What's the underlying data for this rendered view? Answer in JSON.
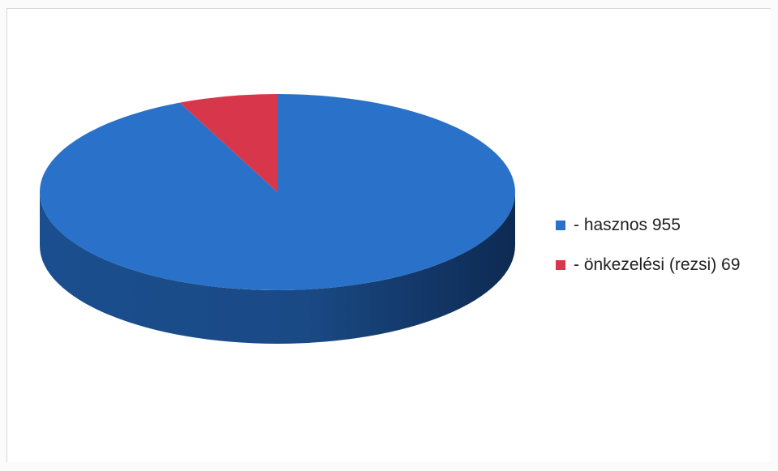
{
  "chart_data": {
    "type": "pie",
    "style": "3d",
    "title": "",
    "legend_position": "right",
    "slices": [
      {
        "label": "- hasznos 955",
        "value": 955,
        "color": "#2a72c9"
      },
      {
        "label": "- önkezelési (rezsi) 69",
        "value": 69,
        "color": "#d8364b"
      }
    ]
  }
}
